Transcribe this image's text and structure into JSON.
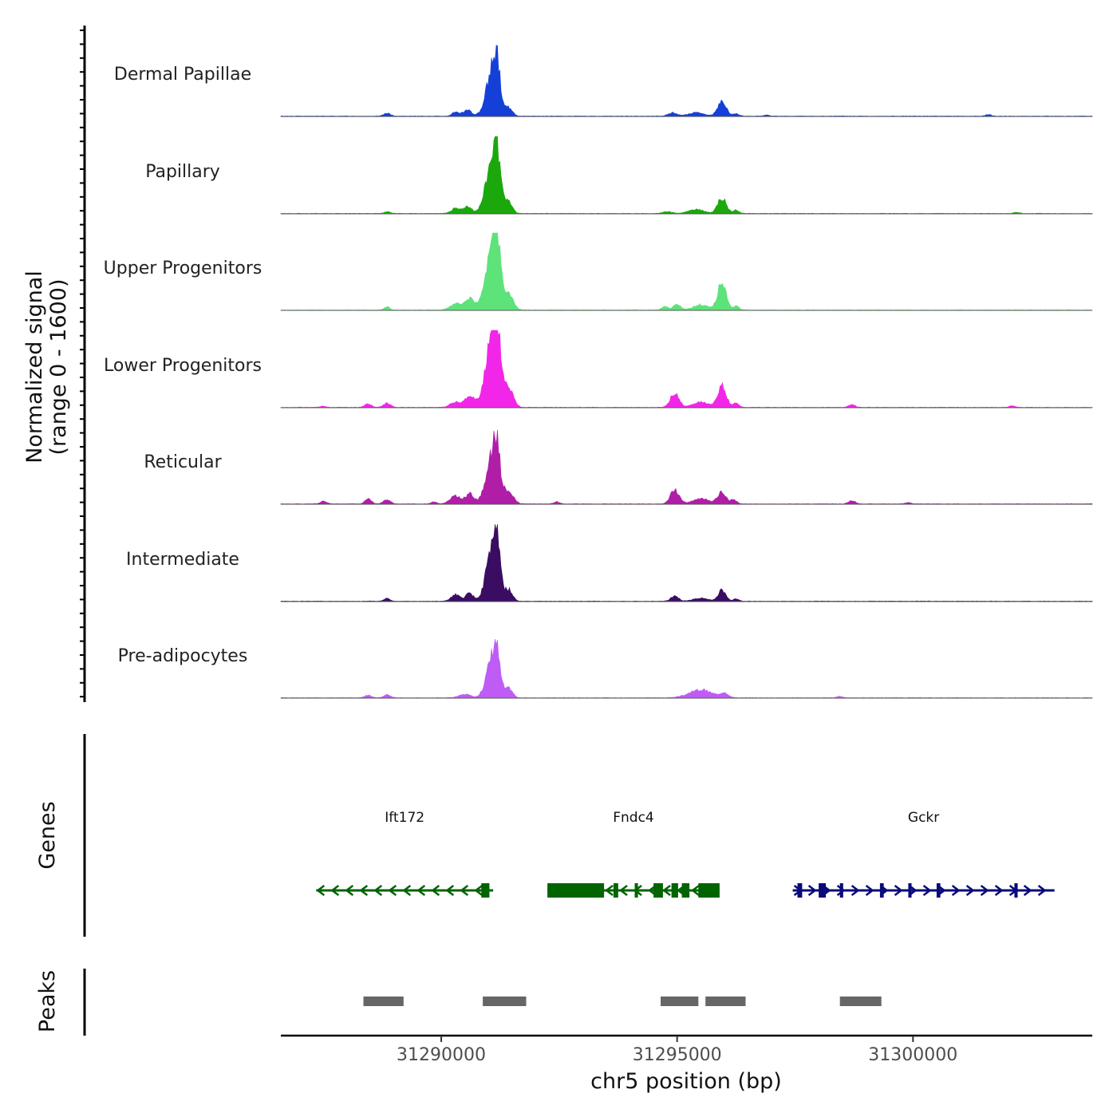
{
  "chart_data": {
    "type": "area",
    "chromosome": "chr5",
    "xlabel": "chr5 position (bp)",
    "xlim": [
      31286600,
      31303800
    ],
    "x_ticks": [
      31290000,
      31295000,
      31300000
    ],
    "x_tick_labels": [
      "31290000",
      "31295000",
      "31300000"
    ],
    "ylabel_line1": "Normalized signal",
    "ylabel_line2": "(range 0 - 1600)",
    "ylim": [
      0,
      1600
    ],
    "series": [
      {
        "name": "Dermal Papillae",
        "color": "#1540d8",
        "peaks": [
          [
            31288850,
            60,
            70
          ],
          [
            31290300,
            80,
            70
          ],
          [
            31290550,
            120,
            90
          ],
          [
            31291100,
            1050,
            130
          ],
          [
            31291180,
            450,
            55
          ],
          [
            31291450,
            150,
            70
          ],
          [
            31294900,
            70,
            90
          ],
          [
            31295400,
            70,
            160
          ],
          [
            31295950,
            300,
            90
          ],
          [
            31296250,
            50,
            60
          ],
          [
            31296900,
            25,
            50
          ],
          [
            31301600,
            30,
            60
          ]
        ]
      },
      {
        "name": "Papillary",
        "color": "#1aa80d",
        "peaks": [
          [
            31288850,
            40,
            60
          ],
          [
            31290300,
            100,
            90
          ],
          [
            31290550,
            150,
            90
          ],
          [
            31291100,
            1200,
            140
          ],
          [
            31291170,
            500,
            55
          ],
          [
            31291450,
            180,
            70
          ],
          [
            31294800,
            40,
            90
          ],
          [
            31295400,
            80,
            160
          ],
          [
            31295950,
            320,
            90
          ],
          [
            31296250,
            70,
            60
          ],
          [
            31302200,
            25,
            60
          ]
        ]
      },
      {
        "name": "Upper Progenitors",
        "color": "#5ee27a",
        "peaks": [
          [
            31288850,
            60,
            60
          ],
          [
            31290300,
            120,
            120
          ],
          [
            31290600,
            220,
            110
          ],
          [
            31291100,
            1350,
            150
          ],
          [
            31291170,
            600,
            60
          ],
          [
            31291450,
            250,
            90
          ],
          [
            31294750,
            70,
            70
          ],
          [
            31295000,
            120,
            70
          ],
          [
            31295500,
            110,
            160
          ],
          [
            31295950,
            560,
            90
          ],
          [
            31296250,
            90,
            60
          ]
        ]
      },
      {
        "name": "Lower Progenitors",
        "color": "#f226e8",
        "peaks": [
          [
            31287500,
            20,
            70
          ],
          [
            31288450,
            70,
            70
          ],
          [
            31288850,
            90,
            70
          ],
          [
            31290300,
            100,
            110
          ],
          [
            31290600,
            220,
            100
          ],
          [
            31291100,
            1480,
            150
          ],
          [
            31291180,
            650,
            60
          ],
          [
            31291450,
            300,
            90
          ],
          [
            31294950,
            300,
            90
          ],
          [
            31295500,
            110,
            160
          ],
          [
            31295950,
            450,
            90
          ],
          [
            31296250,
            80,
            60
          ],
          [
            31298700,
            50,
            70
          ],
          [
            31302100,
            30,
            60
          ]
        ]
      },
      {
        "name": "Reticular",
        "color": "#b01ea8",
        "peaks": [
          [
            31287500,
            50,
            70
          ],
          [
            31288450,
            100,
            70
          ],
          [
            31288850,
            90,
            70
          ],
          [
            31289850,
            40,
            60
          ],
          [
            31290300,
            170,
            110
          ],
          [
            31290600,
            200,
            90
          ],
          [
            31291100,
            1050,
            140
          ],
          [
            31291180,
            500,
            55
          ],
          [
            31291450,
            230,
            90
          ],
          [
            31292450,
            40,
            60
          ],
          [
            31294950,
            290,
            90
          ],
          [
            31295500,
            110,
            170
          ],
          [
            31295950,
            240,
            90
          ],
          [
            31296200,
            80,
            60
          ],
          [
            31298700,
            70,
            70
          ],
          [
            31299900,
            25,
            60
          ]
        ]
      },
      {
        "name": "Intermediate",
        "color": "#3a0d63",
        "peaks": [
          [
            31288850,
            70,
            60
          ],
          [
            31290300,
            140,
            90
          ],
          [
            31290600,
            170,
            80
          ],
          [
            31291100,
            1230,
            130
          ],
          [
            31291170,
            550,
            55
          ],
          [
            31291450,
            200,
            70
          ],
          [
            31294950,
            110,
            80
          ],
          [
            31295500,
            60,
            160
          ],
          [
            31295950,
            220,
            80
          ],
          [
            31296250,
            50,
            60
          ]
        ]
      },
      {
        "name": "Pre-adipocytes",
        "color": "#bf5cf5",
        "peaks": [
          [
            31288450,
            50,
            70
          ],
          [
            31288850,
            60,
            70
          ],
          [
            31290500,
            70,
            120
          ],
          [
            31291100,
            880,
            130
          ],
          [
            31291170,
            400,
            55
          ],
          [
            31291450,
            170,
            70
          ],
          [
            31295500,
            160,
            240
          ],
          [
            31296000,
            100,
            80
          ],
          [
            31298450,
            30,
            60
          ]
        ]
      }
    ],
    "genes": [
      {
        "name": "Ift172",
        "strand": "-",
        "start": 31287350,
        "end": 31291100,
        "color": "#006400",
        "exons": [
          [
            31290850,
            31291020
          ]
        ]
      },
      {
        "name": "Fndc4",
        "strand": "-",
        "start": 31292250,
        "end": 31295900,
        "color": "#006400",
        "exons": [
          [
            31292250,
            31293450
          ],
          [
            31293650,
            31293750
          ],
          [
            31294100,
            31294170
          ],
          [
            31294500,
            31294700
          ],
          [
            31294880,
            31295020
          ],
          [
            31295100,
            31295260
          ],
          [
            31295450,
            31295900
          ]
        ]
      },
      {
        "name": "Gckr",
        "strand": "+",
        "start": 31297450,
        "end": 31303000,
        "color": "#0a0a7a",
        "exons": [
          [
            31297550,
            31297650
          ],
          [
            31298000,
            31298150
          ],
          [
            31298450,
            31298520
          ],
          [
            31299300,
            31299380
          ],
          [
            31299900,
            31299970
          ],
          [
            31300500,
            31300580
          ],
          [
            31302150,
            31302220
          ]
        ]
      }
    ],
    "peaks_track": [
      [
        31288350,
        31289200
      ],
      [
        31290880,
        31291800
      ],
      [
        31294650,
        31295450
      ],
      [
        31295600,
        31296450
      ],
      [
        31298450,
        31299330
      ]
    ],
    "panel_labels": {
      "genes": "Genes",
      "peaks": "Peaks"
    }
  }
}
